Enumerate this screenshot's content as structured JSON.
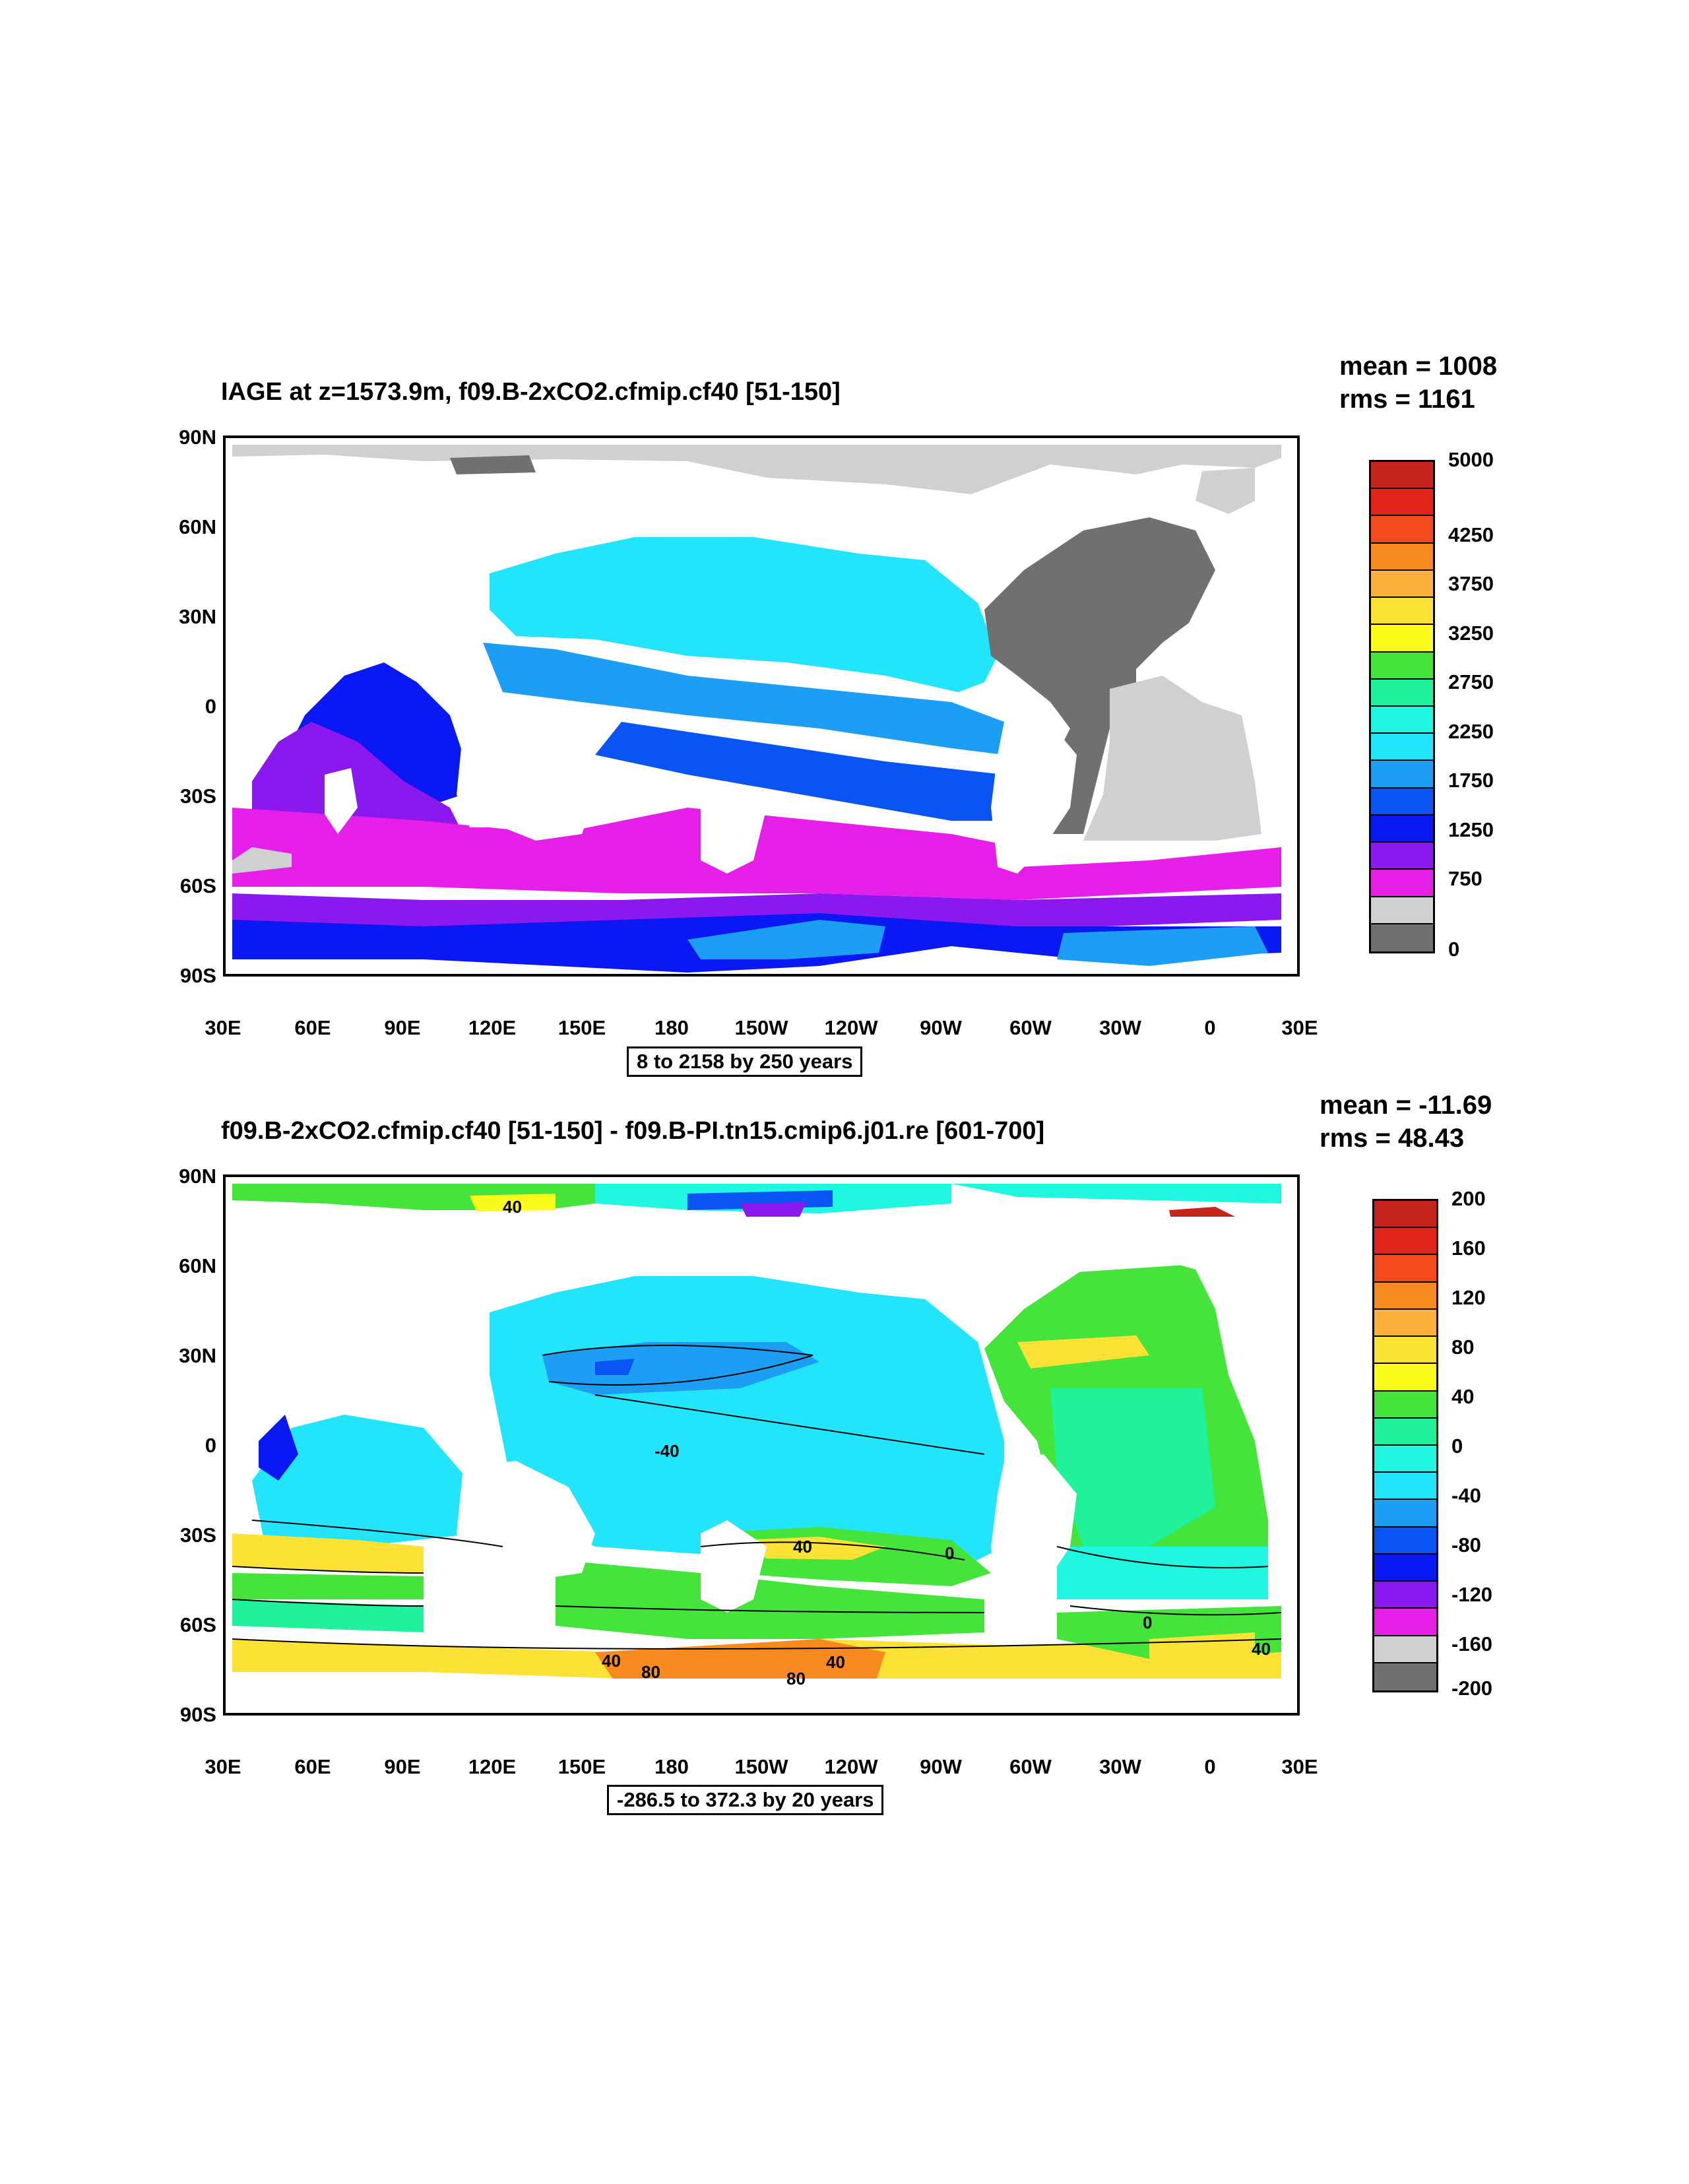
{
  "panels": [
    {
      "title": "IAGE at z=1573.9m, f09.B-2xCO2.cfmip.cf40 [51-150]",
      "mean": "mean = 1008",
      "rms": "rms = 1161",
      "y_ticks": [
        "90N",
        "60N",
        "30N",
        "0",
        "30S",
        "60S",
        "90S"
      ],
      "x_ticks": [
        "30E",
        "60E",
        "90E",
        "120E",
        "150E",
        "180",
        "150W",
        "120W",
        "90W",
        "60W",
        "30W",
        "0",
        "30E"
      ],
      "info": "8 to 2158 by 250 years",
      "colorbar_labels": [
        "5000",
        "4250",
        "3750",
        "3250",
        "2750",
        "2250",
        "1750",
        "1250",
        "750",
        "0"
      ]
    },
    {
      "title": "f09.B-2xCO2.cfmip.cf40 [51-150] - f09.B-PI.tn15.cmip6.j01.re [601-700]",
      "mean": "mean = -11.69",
      "rms": "rms = 48.43",
      "y_ticks": [
        "90N",
        "60N",
        "30N",
        "0",
        "30S",
        "60S",
        "90S"
      ],
      "x_ticks": [
        "30E",
        "60E",
        "90E",
        "120E",
        "150E",
        "180",
        "150W",
        "120W",
        "90W",
        "60W",
        "30W",
        "0",
        "30E"
      ],
      "info": "-286.5 to 372.3 by 20 years",
      "colorbar_labels": [
        "200",
        "160",
        "120",
        "80",
        "40",
        "0",
        "-40",
        "-80",
        "-120",
        "-160",
        "-200"
      ],
      "contour_labels": [
        "-40",
        "40",
        "0",
        "40",
        "80",
        "80",
        "40",
        "40",
        "40",
        "0"
      ]
    }
  ],
  "chart_data": [
    {
      "type": "heatmap",
      "title": "IAGE at z=1573.9m, f09.B-2xCO2.cfmip.cf40 [51-150]",
      "x_range": [
        "30E",
        "30E"
      ],
      "y_range": [
        "90S",
        "90N"
      ],
      "summary": {
        "mean": 1008,
        "rms": 1161
      },
      "contour_info": {
        "min": 8,
        "max": 2158,
        "interval": 250,
        "unit": "years"
      },
      "colorbar": {
        "colors": [
          "#c8241e",
          "#e2251a",
          "#f34b1b",
          "#f98a20",
          "#fdb13a",
          "#fde236",
          "#fcfc1a",
          "#44e43b",
          "#1ff29a",
          "#1ff7e0",
          "#22e5fb",
          "#1d9ef5",
          "#0b54f4",
          "#0a18f3",
          "#8c18f0",
          "#e51fe8",
          "#d0d0d0",
          "#707070"
        ],
        "labels": [
          "5000",
          "4250",
          "3750",
          "3250",
          "2750",
          "2250",
          "1750",
          "1250",
          "750",
          "0"
        ]
      }
    },
    {
      "type": "heatmap",
      "title": "f09.B-2xCO2.cfmip.cf40 [51-150] - f09.B-PI.tn15.cmip6.j01.re [601-700]",
      "x_range": [
        "30E",
        "30E"
      ],
      "y_range": [
        "90S",
        "90N"
      ],
      "summary": {
        "mean": -11.69,
        "rms": 48.43
      },
      "contour_info": {
        "min": -286.5,
        "max": 372.3,
        "interval": 20,
        "unit": "years"
      },
      "colorbar": {
        "colors": [
          "#c8241e",
          "#e2251a",
          "#f34b1b",
          "#f98a20",
          "#fdb13a",
          "#fde236",
          "#fcfc1a",
          "#44e43b",
          "#1ff29a",
          "#1ff7e0",
          "#22e5fb",
          "#1d9ef5",
          "#0b54f4",
          "#0a18f3",
          "#8c18f0",
          "#e51fe8",
          "#d0d0d0",
          "#707070"
        ],
        "labels": [
          "200",
          "160",
          "120",
          "80",
          "40",
          "0",
          "-40",
          "-80",
          "-120",
          "-160",
          "-200"
        ]
      }
    }
  ]
}
